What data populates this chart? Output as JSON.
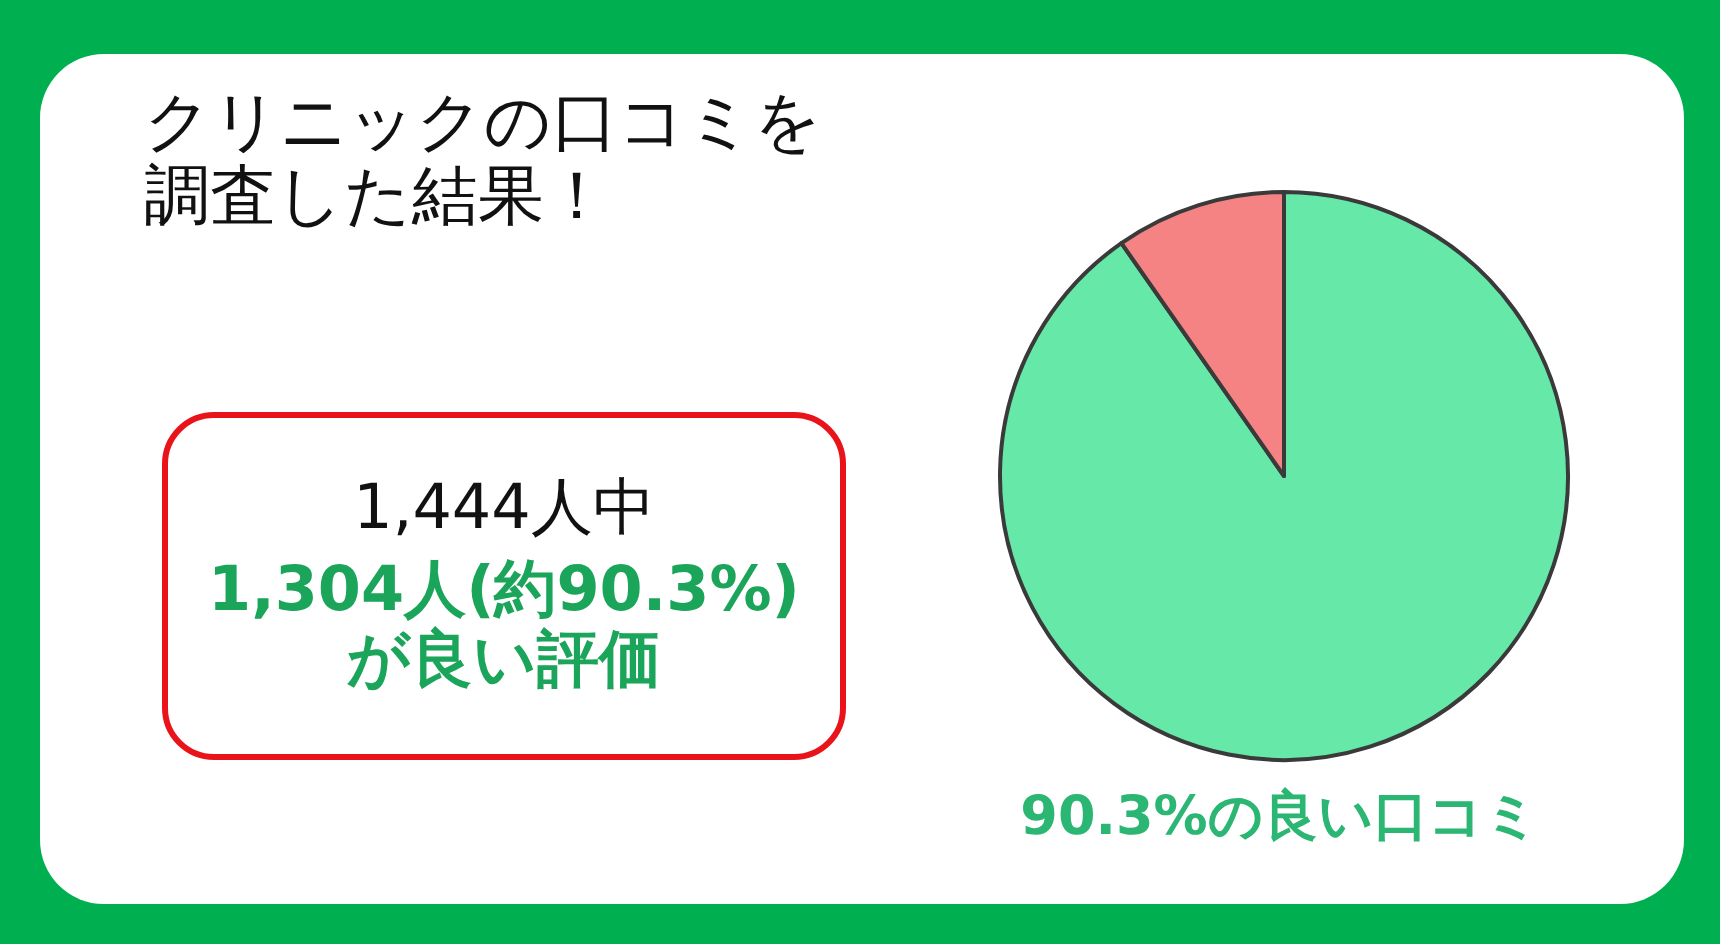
{
  "chart_data": {
    "type": "pie",
    "title": "クリニックの口コミを調査した結果！",
    "categories": [
      null,
      null
    ],
    "values": [
      90.3,
      9.7
    ],
    "colors": [
      "#66e8a8",
      "#f58383"
    ],
    "annotations": [
      "1,444人中",
      "1,304人(約90.3%)",
      "が良い評価",
      "90.3%の良い口コミ"
    ]
  }
}
